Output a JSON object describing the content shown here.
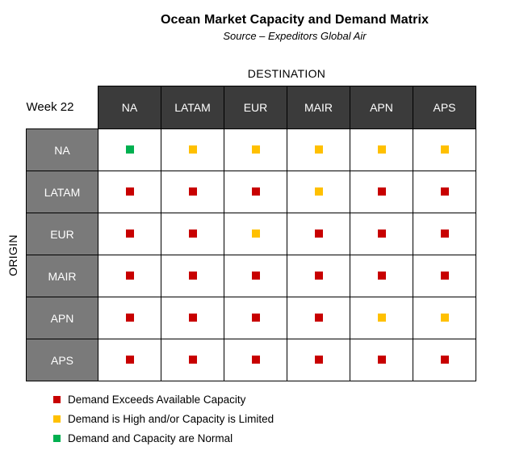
{
  "colors": {
    "red": "#c80000",
    "yellow": "#ffc000",
    "green": "#00b050",
    "header_dark": "#3b3b3b",
    "header_gray": "#7a7a7a"
  },
  "chart_data": {
    "type": "table",
    "title": "Ocean Market Capacity and Demand Matrix",
    "subtitle": "Source – Expeditors Global Air",
    "column_axis_label": "DESTINATION",
    "row_axis_label": "ORIGIN",
    "corner_label": "Week  22",
    "columns": [
      "NA",
      "LATAM",
      "EUR",
      "MAIR",
      "APN",
      "APS"
    ],
    "rows": [
      {
        "label": "NA",
        "values": [
          "normal",
          "high",
          "high",
          "high",
          "high",
          "high"
        ]
      },
      {
        "label": "LATAM",
        "values": [
          "exceeds",
          "exceeds",
          "exceeds",
          "high",
          "exceeds",
          "exceeds"
        ]
      },
      {
        "label": "EUR",
        "values": [
          "exceeds",
          "exceeds",
          "high",
          "exceeds",
          "exceeds",
          "exceeds"
        ]
      },
      {
        "label": "MAIR",
        "values": [
          "exceeds",
          "exceeds",
          "exceeds",
          "exceeds",
          "exceeds",
          "exceeds"
        ]
      },
      {
        "label": "APN",
        "values": [
          "exceeds",
          "exceeds",
          "exceeds",
          "exceeds",
          "high",
          "high"
        ]
      },
      {
        "label": "APS",
        "values": [
          "exceeds",
          "exceeds",
          "exceeds",
          "exceeds",
          "exceeds",
          "exceeds"
        ]
      }
    ],
    "legend": [
      {
        "key": "exceeds",
        "label": "Demand Exceeds Available Capacity",
        "color": "#c80000"
      },
      {
        "key": "high",
        "label": "Demand is High and/or Capacity is Limited",
        "color": "#ffc000"
      },
      {
        "key": "normal",
        "label": "Demand and Capacity are Normal",
        "color": "#00b050"
      }
    ]
  }
}
